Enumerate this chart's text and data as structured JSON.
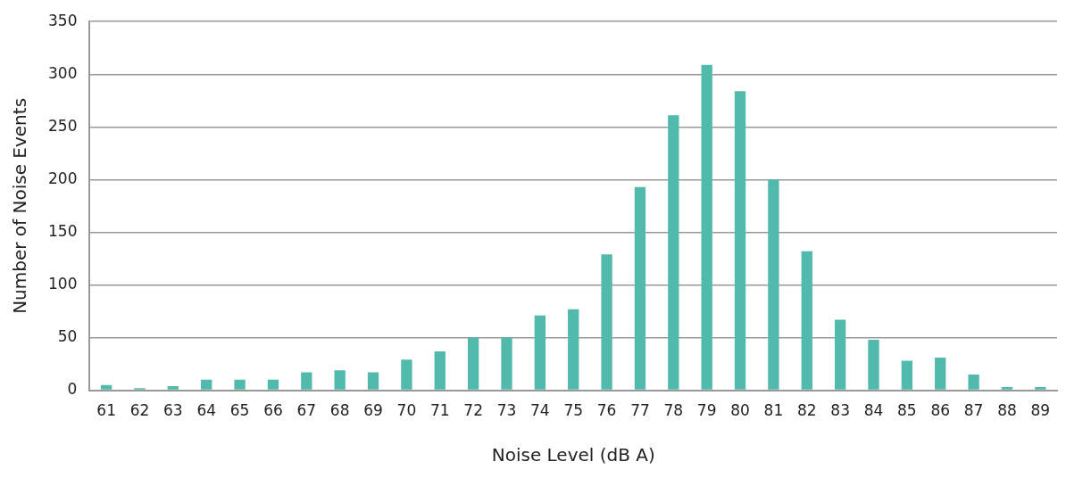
{
  "chart_data": {
    "type": "bar",
    "xlabel": "Noise Level (dB A)",
    "ylabel": "Number of Noise Events",
    "categories": [
      "61",
      "62",
      "63",
      "64",
      "65",
      "66",
      "67",
      "68",
      "69",
      "70",
      "71",
      "72",
      "73",
      "74",
      "75",
      "76",
      "77",
      "78",
      "79",
      "80",
      "81",
      "82",
      "83",
      "84",
      "85",
      "86",
      "87",
      "88",
      "89"
    ],
    "values": [
      5,
      2,
      4,
      10,
      10,
      10,
      17,
      19,
      17,
      29,
      37,
      50,
      50,
      71,
      77,
      129,
      193,
      261,
      309,
      284,
      200,
      132,
      67,
      48,
      28,
      31,
      15,
      3,
      3
    ],
    "color": "#52b9ad",
    "ylim": [
      0,
      350
    ],
    "yticks": [
      0,
      50,
      100,
      150,
      200,
      250,
      300,
      350
    ],
    "grid": "y",
    "legend": false
  }
}
